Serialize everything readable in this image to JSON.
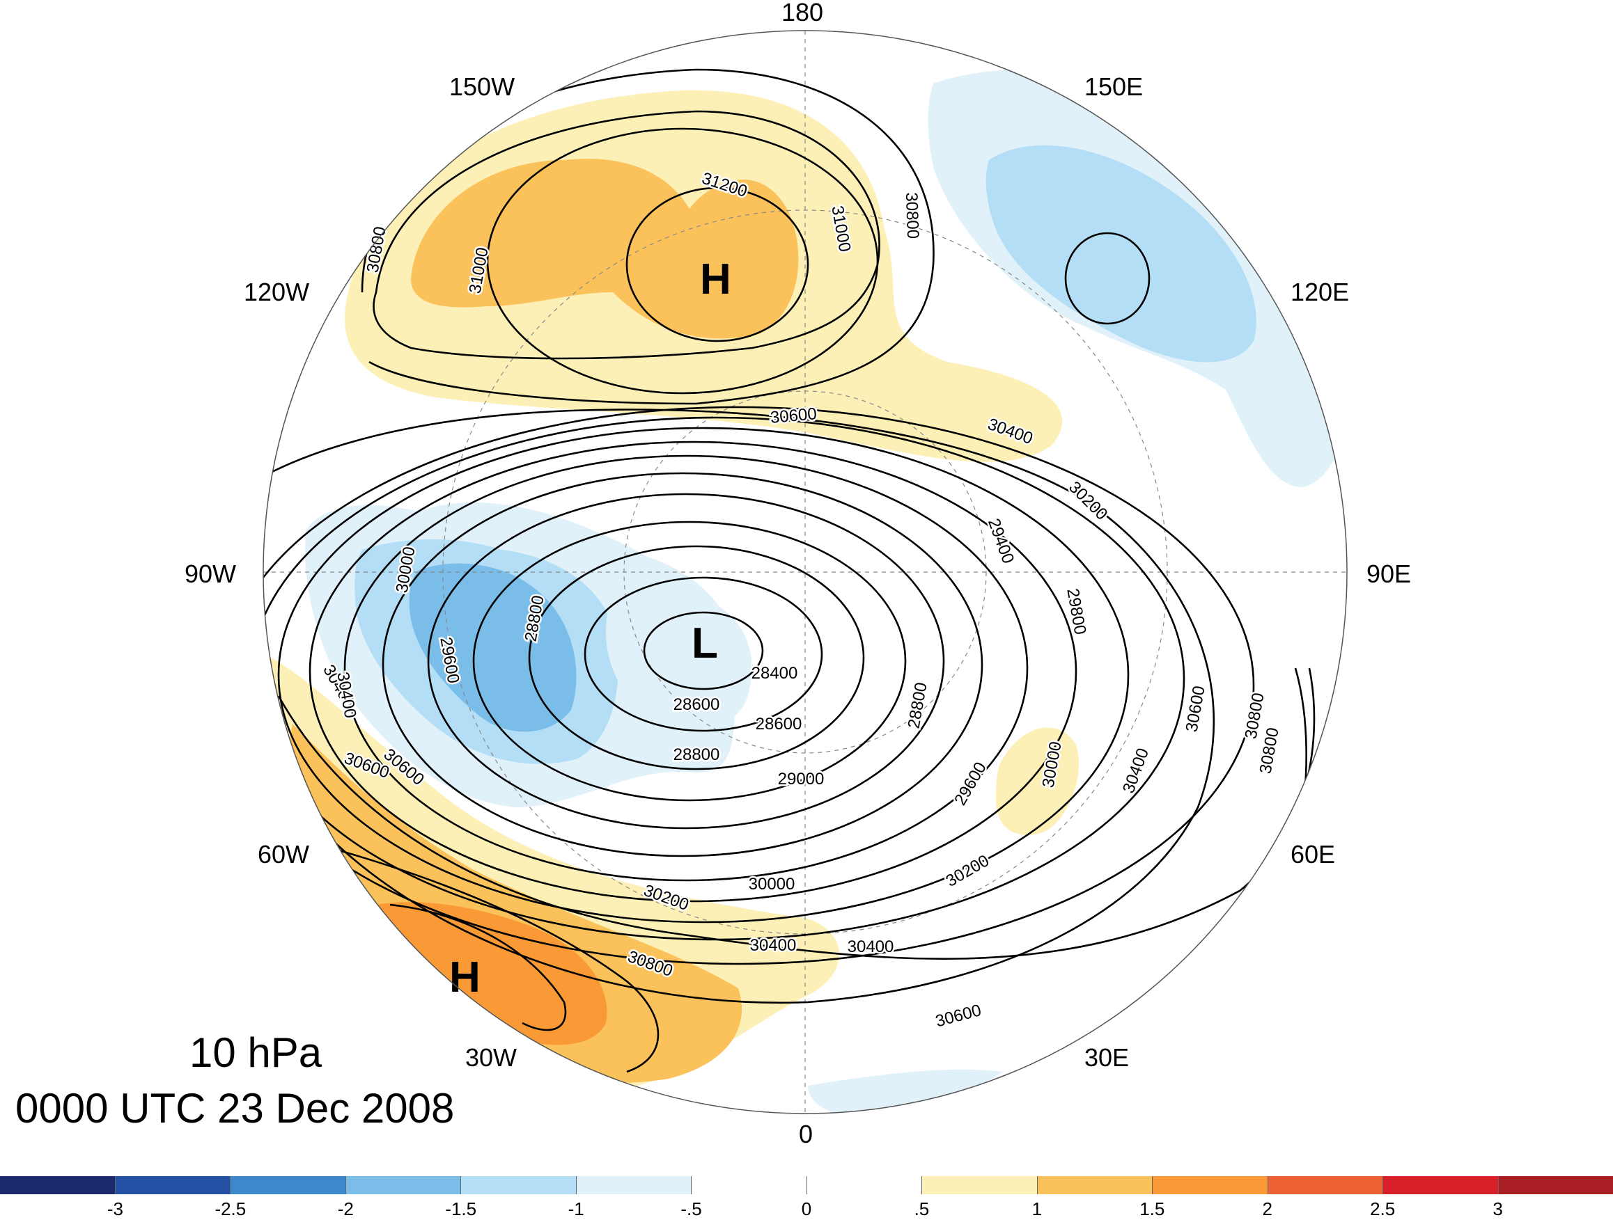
{
  "title": {
    "level": "10 hPa",
    "time": "0000 UTC 23 Dec 2008"
  },
  "longitude_labels": [
    {
      "key": "n180",
      "text": "180"
    },
    {
      "key": "w150",
      "text": "150W"
    },
    {
      "key": "e150",
      "text": "150E"
    },
    {
      "key": "w120",
      "text": "120W"
    },
    {
      "key": "e120",
      "text": "120E"
    },
    {
      "key": "w90",
      "text": "90W"
    },
    {
      "key": "e90",
      "text": "90E"
    },
    {
      "key": "w60",
      "text": "60W"
    },
    {
      "key": "e60",
      "text": "60E"
    },
    {
      "key": "w30",
      "text": "30W"
    },
    {
      "key": "e30",
      "text": "30E"
    },
    {
      "key": "s0",
      "text": "0"
    }
  ],
  "pressure_centers": [
    {
      "key": "high_pacific",
      "text": "H"
    },
    {
      "key": "low_polar",
      "text": "L"
    },
    {
      "key": "high_atlantic",
      "text": "H"
    }
  ],
  "contour_labels": [
    "31200",
    "31000",
    "31000",
    "30800",
    "30800",
    "30600",
    "30400",
    "30200",
    "29400",
    "29800",
    "30400",
    "30600",
    "30800",
    "30600",
    "30400",
    "30000",
    "29600",
    "28800",
    "28400",
    "28600",
    "28600",
    "28800",
    "29000",
    "28800",
    "29600",
    "30000",
    "30200",
    "30600",
    "30800",
    "30000",
    "30400",
    "30400",
    "30200",
    "30800",
    "30400",
    "30600"
  ],
  "colorbar": {
    "colors": [
      "#1a2a6c",
      "#2350a3",
      "#3d87cc",
      "#79bde8",
      "#b3def5",
      "#e1f1fa",
      "#ffffff",
      "#ffffff",
      "#fdf0b6",
      "#fbc25b",
      "#f99a36",
      "#ee6133",
      "#d8202b",
      "#a81e22"
    ],
    "ticks": [
      "-3",
      "-2.5",
      "-2",
      "-1.5",
      "-1",
      "-.5",
      "0",
      ".5",
      "1",
      "1.5",
      "2",
      "2.5",
      "3"
    ]
  },
  "map_style": {
    "contour_interval_gpm": 200,
    "shading": "anomaly"
  }
}
